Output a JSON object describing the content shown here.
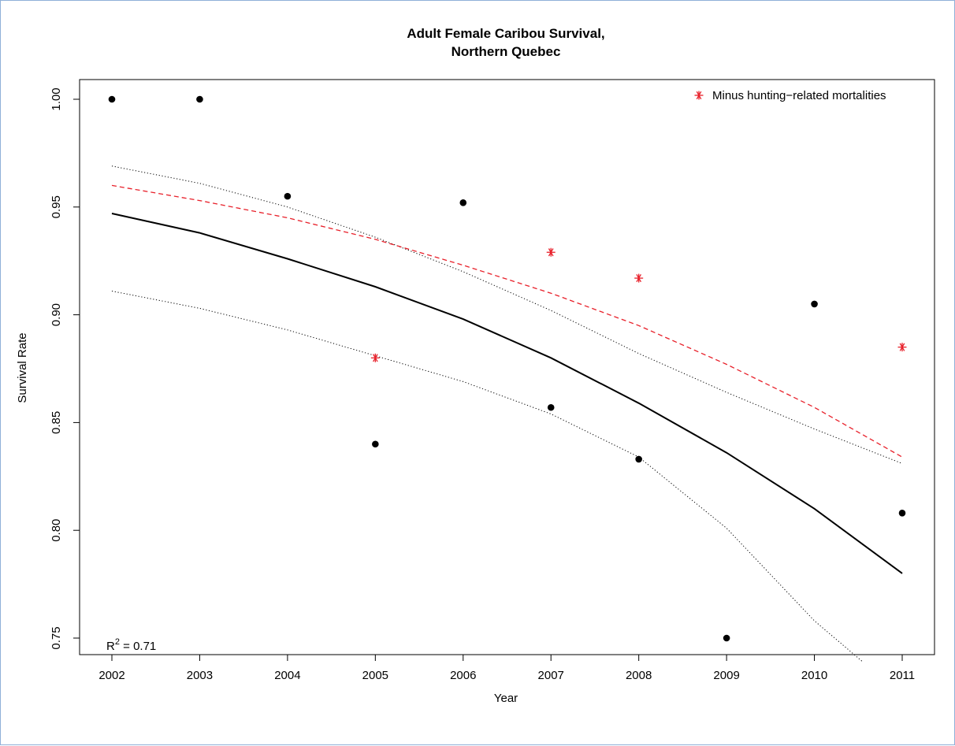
{
  "chart_data": {
    "type": "scatter",
    "title_line1": "Adult Female Caribou Survival,",
    "title_line2": "Northern Quebec",
    "xlabel": "Year",
    "ylabel": "Survival Rate",
    "xlim": [
      2002,
      2011
    ],
    "ylim": [
      0.75,
      1.0
    ],
    "x_ticks": [
      "2002",
      "2003",
      "2004",
      "2005",
      "2006",
      "2007",
      "2008",
      "2009",
      "2010",
      "2011"
    ],
    "y_ticks": [
      "0.75",
      "0.80",
      "0.85",
      "0.90",
      "0.95",
      "1.00"
    ],
    "grid": false,
    "legend": {
      "position": "top-right",
      "label": "Minus hunting−related mortalities"
    },
    "annotation": {
      "r2_prefix": "R",
      "r2_sup": "2",
      "r2_value": " = 0.71"
    },
    "series": [
      {
        "kind": "points",
        "marker": "filled-circle",
        "color": "#000000",
        "x": [
          2002,
          2003,
          2004,
          2005,
          2006,
          2007,
          2008,
          2009,
          2010,
          2011
        ],
        "y": [
          1.0,
          1.0,
          0.955,
          0.84,
          0.952,
          0.857,
          0.833,
          0.75,
          0.905,
          0.808
        ]
      },
      {
        "name": "Minus hunting−related mortalities",
        "kind": "points",
        "marker": "asterisk",
        "color": "#e8202a",
        "x": [
          2005,
          2007,
          2008,
          2011
        ],
        "y": [
          0.88,
          0.929,
          0.917,
          0.885
        ]
      },
      {
        "kind": "line",
        "style": "solid",
        "color": "#000000",
        "x": [
          2002,
          2003,
          2004,
          2005,
          2006,
          2007,
          2008,
          2009,
          2010,
          2011
        ],
        "y": [
          0.947,
          0.938,
          0.926,
          0.913,
          0.898,
          0.88,
          0.859,
          0.836,
          0.81,
          0.78
        ]
      },
      {
        "kind": "line",
        "style": "dotted",
        "color": "#000000",
        "x": [
          2002,
          2003,
          2004,
          2005,
          2006,
          2007,
          2008,
          2009,
          2010,
          2011
        ],
        "y": [
          0.969,
          0.961,
          0.95,
          0.936,
          0.92,
          0.902,
          0.882,
          0.864,
          0.847,
          0.831
        ]
      },
      {
        "kind": "line",
        "style": "dotted",
        "color": "#000000",
        "x": [
          2002,
          2003,
          2004,
          2005,
          2006,
          2007,
          2008,
          2009,
          2010,
          2010.55
        ],
        "y": [
          0.911,
          0.903,
          0.893,
          0.881,
          0.869,
          0.854,
          0.834,
          0.801,
          0.758,
          0.739
        ]
      },
      {
        "kind": "line",
        "style": "dashed",
        "color": "#e8202a",
        "x": [
          2002,
          2003,
          2004,
          2005,
          2006,
          2007,
          2008,
          2009,
          2010,
          2011
        ],
        "y": [
          0.96,
          0.953,
          0.945,
          0.935,
          0.923,
          0.91,
          0.895,
          0.877,
          0.857,
          0.834
        ]
      }
    ]
  }
}
